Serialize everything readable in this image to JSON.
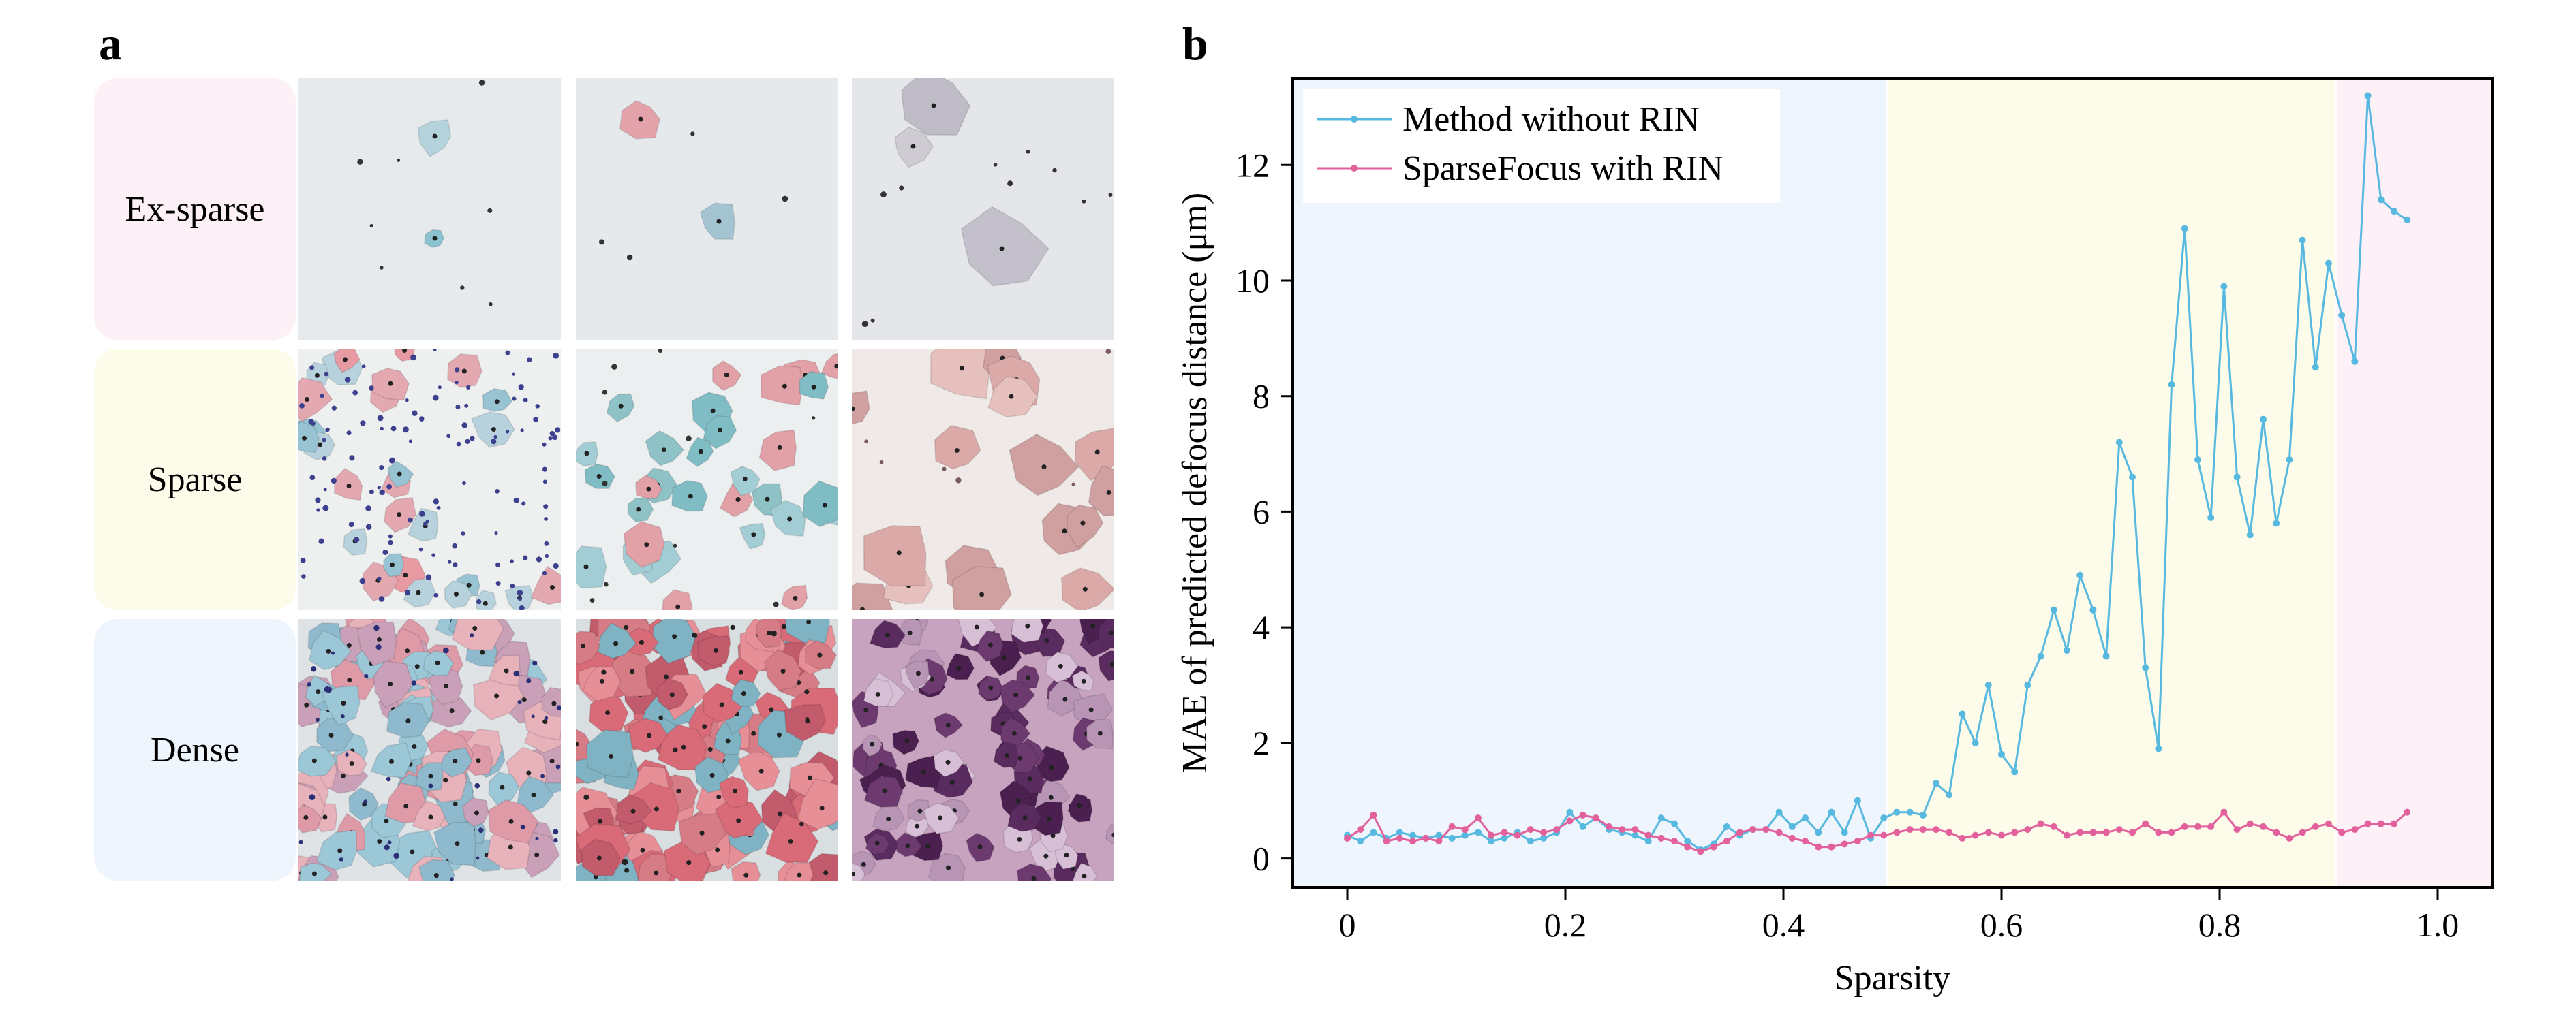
{
  "panels": {
    "a_letter": "a",
    "b_letter": "b"
  },
  "panel_a": {
    "rows": [
      {
        "label": "Ex-sparse",
        "color": "#fdf0f6"
      },
      {
        "label": "Sparse",
        "color": "#fdfbea"
      },
      {
        "label": "Dense",
        "color": "#eef5fc"
      }
    ]
  },
  "chart_data": {
    "type": "line",
    "title": "",
    "xlabel": "Sparsity",
    "ylabel": "MAE of predicted defocus distance (μm)",
    "xlim": [
      -0.05,
      1.05
    ],
    "ylim": [
      -0.5,
      13.5
    ],
    "xticks": [
      0,
      0.2,
      0.4,
      0.6,
      0.8,
      1.0
    ],
    "xtick_labels": [
      "0",
      "0.2",
      "0.4",
      "0.6",
      "0.8",
      "1.0"
    ],
    "yticks": [
      0,
      2,
      4,
      6,
      8,
      10,
      12
    ],
    "ytick_labels": [
      "0",
      "2",
      "4",
      "6",
      "8",
      "10",
      "12"
    ],
    "legend_location": "top-left",
    "regions": [
      {
        "x0": -0.05,
        "x1": 0.495,
        "color": "#eef5fc"
      },
      {
        "x0": 0.495,
        "x1": 0.907,
        "color": "#fdfbea"
      },
      {
        "x0": 0.907,
        "x1": 1.05,
        "color": "#fdf0f6"
      }
    ],
    "series": [
      {
        "name": "Method without RIN",
        "color": "#57b9e0",
        "points": [
          [
            0.0,
            0.4
          ],
          [
            0.012,
            0.3
          ],
          [
            0.024,
            0.45
          ],
          [
            0.036,
            0.35
          ],
          [
            0.048,
            0.45
          ],
          [
            0.06,
            0.4
          ],
          [
            0.072,
            0.35
          ],
          [
            0.084,
            0.4
          ],
          [
            0.096,
            0.35
          ],
          [
            0.108,
            0.4
          ],
          [
            0.12,
            0.45
          ],
          [
            0.132,
            0.3
          ],
          [
            0.144,
            0.35
          ],
          [
            0.156,
            0.45
          ],
          [
            0.168,
            0.3
          ],
          [
            0.18,
            0.35
          ],
          [
            0.192,
            0.45
          ],
          [
            0.204,
            0.8
          ],
          [
            0.216,
            0.55
          ],
          [
            0.228,
            0.7
          ],
          [
            0.24,
            0.5
          ],
          [
            0.252,
            0.45
          ],
          [
            0.264,
            0.4
          ],
          [
            0.276,
            0.3
          ],
          [
            0.288,
            0.7
          ],
          [
            0.3,
            0.6
          ],
          [
            0.312,
            0.3
          ],
          [
            0.324,
            0.15
          ],
          [
            0.336,
            0.25
          ],
          [
            0.348,
            0.55
          ],
          [
            0.36,
            0.4
          ],
          [
            0.372,
            0.5
          ],
          [
            0.384,
            0.5
          ],
          [
            0.396,
            0.8
          ],
          [
            0.408,
            0.55
          ],
          [
            0.42,
            0.7
          ],
          [
            0.432,
            0.45
          ],
          [
            0.444,
            0.8
          ],
          [
            0.456,
            0.45
          ],
          [
            0.468,
            1.0
          ],
          [
            0.48,
            0.35
          ],
          [
            0.492,
            0.7
          ],
          [
            0.504,
            0.8
          ],
          [
            0.516,
            0.8
          ],
          [
            0.528,
            0.75
          ],
          [
            0.54,
            1.3
          ],
          [
            0.552,
            1.1
          ],
          [
            0.564,
            2.5
          ],
          [
            0.576,
            2.0
          ],
          [
            0.588,
            3.0
          ],
          [
            0.6,
            1.8
          ],
          [
            0.612,
            1.5
          ],
          [
            0.624,
            3.0
          ],
          [
            0.636,
            3.5
          ],
          [
            0.648,
            4.3
          ],
          [
            0.66,
            3.6
          ],
          [
            0.672,
            4.9
          ],
          [
            0.684,
            4.3
          ],
          [
            0.696,
            3.5
          ],
          [
            0.708,
            7.2
          ],
          [
            0.72,
            6.6
          ],
          [
            0.732,
            3.3
          ],
          [
            0.744,
            1.9
          ],
          [
            0.756,
            8.2
          ],
          [
            0.768,
            10.9
          ],
          [
            0.78,
            6.9
          ],
          [
            0.792,
            5.9
          ],
          [
            0.804,
            9.9
          ],
          [
            0.816,
            6.6
          ],
          [
            0.828,
            5.6
          ],
          [
            0.84,
            7.6
          ],
          [
            0.852,
            5.8
          ],
          [
            0.864,
            6.9
          ],
          [
            0.876,
            10.7
          ],
          [
            0.888,
            8.5
          ],
          [
            0.9,
            10.3
          ],
          [
            0.912,
            9.4
          ],
          [
            0.924,
            8.6
          ],
          [
            0.936,
            13.2
          ],
          [
            0.948,
            11.4
          ],
          [
            0.96,
            11.2
          ],
          [
            0.972,
            11.05
          ]
        ]
      },
      {
        "name": "SparseFocus with RIN",
        "color": "#e2609b",
        "points": [
          [
            0.0,
            0.35
          ],
          [
            0.012,
            0.5
          ],
          [
            0.024,
            0.75
          ],
          [
            0.036,
            0.3
          ],
          [
            0.048,
            0.35
          ],
          [
            0.06,
            0.3
          ],
          [
            0.072,
            0.35
          ],
          [
            0.084,
            0.3
          ],
          [
            0.096,
            0.55
          ],
          [
            0.108,
            0.5
          ],
          [
            0.12,
            0.7
          ],
          [
            0.132,
            0.4
          ],
          [
            0.144,
            0.45
          ],
          [
            0.156,
            0.4
          ],
          [
            0.168,
            0.5
          ],
          [
            0.18,
            0.45
          ],
          [
            0.192,
            0.5
          ],
          [
            0.204,
            0.65
          ],
          [
            0.216,
            0.75
          ],
          [
            0.228,
            0.7
          ],
          [
            0.24,
            0.55
          ],
          [
            0.252,
            0.5
          ],
          [
            0.264,
            0.5
          ],
          [
            0.276,
            0.4
          ],
          [
            0.288,
            0.35
          ],
          [
            0.3,
            0.3
          ],
          [
            0.312,
            0.2
          ],
          [
            0.324,
            0.12
          ],
          [
            0.336,
            0.2
          ],
          [
            0.348,
            0.3
          ],
          [
            0.36,
            0.45
          ],
          [
            0.372,
            0.5
          ],
          [
            0.384,
            0.5
          ],
          [
            0.396,
            0.45
          ],
          [
            0.408,
            0.35
          ],
          [
            0.42,
            0.3
          ],
          [
            0.432,
            0.2
          ],
          [
            0.444,
            0.2
          ],
          [
            0.456,
            0.25
          ],
          [
            0.468,
            0.3
          ],
          [
            0.48,
            0.4
          ],
          [
            0.492,
            0.4
          ],
          [
            0.504,
            0.45
          ],
          [
            0.516,
            0.5
          ],
          [
            0.528,
            0.5
          ],
          [
            0.54,
            0.5
          ],
          [
            0.552,
            0.45
          ],
          [
            0.564,
            0.35
          ],
          [
            0.576,
            0.4
          ],
          [
            0.588,
            0.45
          ],
          [
            0.6,
            0.4
          ],
          [
            0.612,
            0.45
          ],
          [
            0.624,
            0.5
          ],
          [
            0.636,
            0.6
          ],
          [
            0.648,
            0.55
          ],
          [
            0.66,
            0.4
          ],
          [
            0.672,
            0.45
          ],
          [
            0.684,
            0.45
          ],
          [
            0.696,
            0.45
          ],
          [
            0.708,
            0.5
          ],
          [
            0.72,
            0.45
          ],
          [
            0.732,
            0.6
          ],
          [
            0.744,
            0.45
          ],
          [
            0.756,
            0.45
          ],
          [
            0.768,
            0.55
          ],
          [
            0.78,
            0.55
          ],
          [
            0.792,
            0.55
          ],
          [
            0.804,
            0.8
          ],
          [
            0.816,
            0.5
          ],
          [
            0.828,
            0.6
          ],
          [
            0.84,
            0.55
          ],
          [
            0.852,
            0.45
          ],
          [
            0.864,
            0.35
          ],
          [
            0.876,
            0.45
          ],
          [
            0.888,
            0.55
          ],
          [
            0.9,
            0.6
          ],
          [
            0.912,
            0.45
          ],
          [
            0.924,
            0.5
          ],
          [
            0.936,
            0.6
          ],
          [
            0.948,
            0.6
          ],
          [
            0.96,
            0.6
          ],
          [
            0.972,
            0.8
          ]
        ]
      }
    ]
  }
}
